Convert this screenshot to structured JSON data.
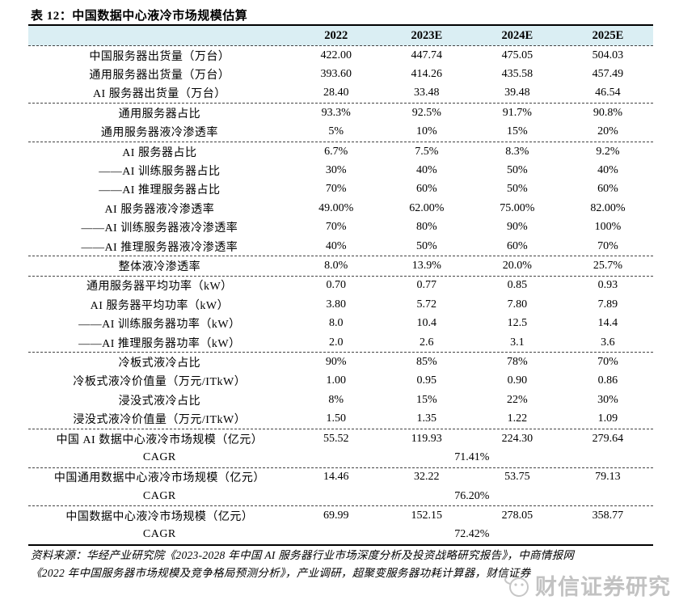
{
  "table": {
    "title": "表 12：中国数据中心液冷市场规模估算",
    "columns": [
      "2022",
      "2023E",
      "2024E",
      "2025E"
    ],
    "header_bg": "#daeef3",
    "groups": [
      {
        "rows": [
          {
            "label": "中国服务器出货量（万台）",
            "values": [
              "422.00",
              "447.74",
              "475.05",
              "504.03"
            ]
          },
          {
            "label": "通用服务器出货量（万台）",
            "values": [
              "393.60",
              "414.26",
              "435.58",
              "457.49"
            ]
          },
          {
            "label": "AI 服务器出货量（万台）",
            "values": [
              "28.40",
              "33.48",
              "39.48",
              "46.54"
            ]
          }
        ]
      },
      {
        "rows": [
          {
            "label": "通用服务器占比",
            "values": [
              "93.3%",
              "92.5%",
              "91.7%",
              "90.8%"
            ]
          },
          {
            "label": "通用服务器液冷渗透率",
            "values": [
              "5%",
              "10%",
              "15%",
              "20%"
            ]
          }
        ]
      },
      {
        "rows": [
          {
            "label": "AI 服务器占比",
            "values": [
              "6.7%",
              "7.5%",
              "8.3%",
              "9.2%"
            ]
          },
          {
            "label": "——AI 训练服务器占比",
            "values": [
              "30%",
              "40%",
              "50%",
              "40%"
            ]
          },
          {
            "label": "——AI 推理服务器占比",
            "values": [
              "70%",
              "60%",
              "50%",
              "60%"
            ]
          },
          {
            "label": "AI 服务器液冷渗透率",
            "values": [
              "49.00%",
              "62.00%",
              "75.00%",
              "82.00%"
            ]
          },
          {
            "label": "——AI 训练服务器液冷渗透率",
            "values": [
              "70%",
              "80%",
              "90%",
              "100%"
            ]
          },
          {
            "label": "——AI 推理服务器液冷渗透率",
            "values": [
              "40%",
              "50%",
              "60%",
              "70%"
            ]
          }
        ]
      },
      {
        "rows": [
          {
            "label": "整体液冷渗透率",
            "values": [
              "8.0%",
              "13.9%",
              "20.0%",
              "25.7%"
            ]
          }
        ]
      },
      {
        "rows": [
          {
            "label": "通用服务器平均功率（kW）",
            "values": [
              "0.70",
              "0.77",
              "0.85",
              "0.93"
            ]
          },
          {
            "label": "AI 服务器平均功率（kW）",
            "values": [
              "3.80",
              "5.72",
              "7.80",
              "7.89"
            ]
          },
          {
            "label": "——AI 训练服务器功率（kW）",
            "values": [
              "8.0",
              "10.4",
              "12.5",
              "14.4"
            ]
          },
          {
            "label": "——AI 推理服务器功率（kW）",
            "values": [
              "2.0",
              "2.6",
              "3.1",
              "3.6"
            ]
          }
        ]
      },
      {
        "rows": [
          {
            "label": "冷板式液冷占比",
            "values": [
              "90%",
              "85%",
              "78%",
              "70%"
            ]
          },
          {
            "label": "冷板式液冷价值量（万元/ITkW）",
            "values": [
              "1.00",
              "0.95",
              "0.90",
              "0.86"
            ]
          },
          {
            "label": "浸没式液冷占比",
            "values": [
              "8%",
              "15%",
              "22%",
              "30%"
            ]
          },
          {
            "label": "浸没式液冷价值量（万元/ITkW）",
            "values": [
              "1.50",
              "1.35",
              "1.22",
              "1.09"
            ]
          }
        ]
      },
      {
        "rows": [
          {
            "label": "中国 AI 数据中心液冷市场规模（亿元）",
            "values": [
              "55.52",
              "119.93",
              "224.30",
              "279.64"
            ]
          },
          {
            "label": "CAGR",
            "merged": "71.41%"
          }
        ]
      },
      {
        "rows": [
          {
            "label": "中国通用数据中心液冷市场规模（亿元）",
            "values": [
              "14.46",
              "32.22",
              "53.75",
              "79.13"
            ]
          },
          {
            "label": "CAGR",
            "merged": "76.20%"
          }
        ]
      },
      {
        "rows": [
          {
            "label": "中国数据中心液冷市场规模（亿元）",
            "values": [
              "69.99",
              "152.15",
              "278.05",
              "358.77"
            ]
          },
          {
            "label": "CAGR",
            "merged": "72.42%"
          }
        ]
      }
    ]
  },
  "footer": {
    "line1": "资料来源：华经产业研究院《2023-2028 年中国 AI 服务器行业市场深度分析及投资战略研究报告》，中商情报网",
    "line2": "《2022 年中国服务器市场规模及竞争格局预测分析》，产业调研，超聚变服务器功耗计算器，财信证券"
  },
  "watermark": {
    "text": "财信证券研究"
  },
  "colors": {
    "header_bg": "#daeef3",
    "border": "#000000",
    "watermark": "#b3b3b3"
  }
}
